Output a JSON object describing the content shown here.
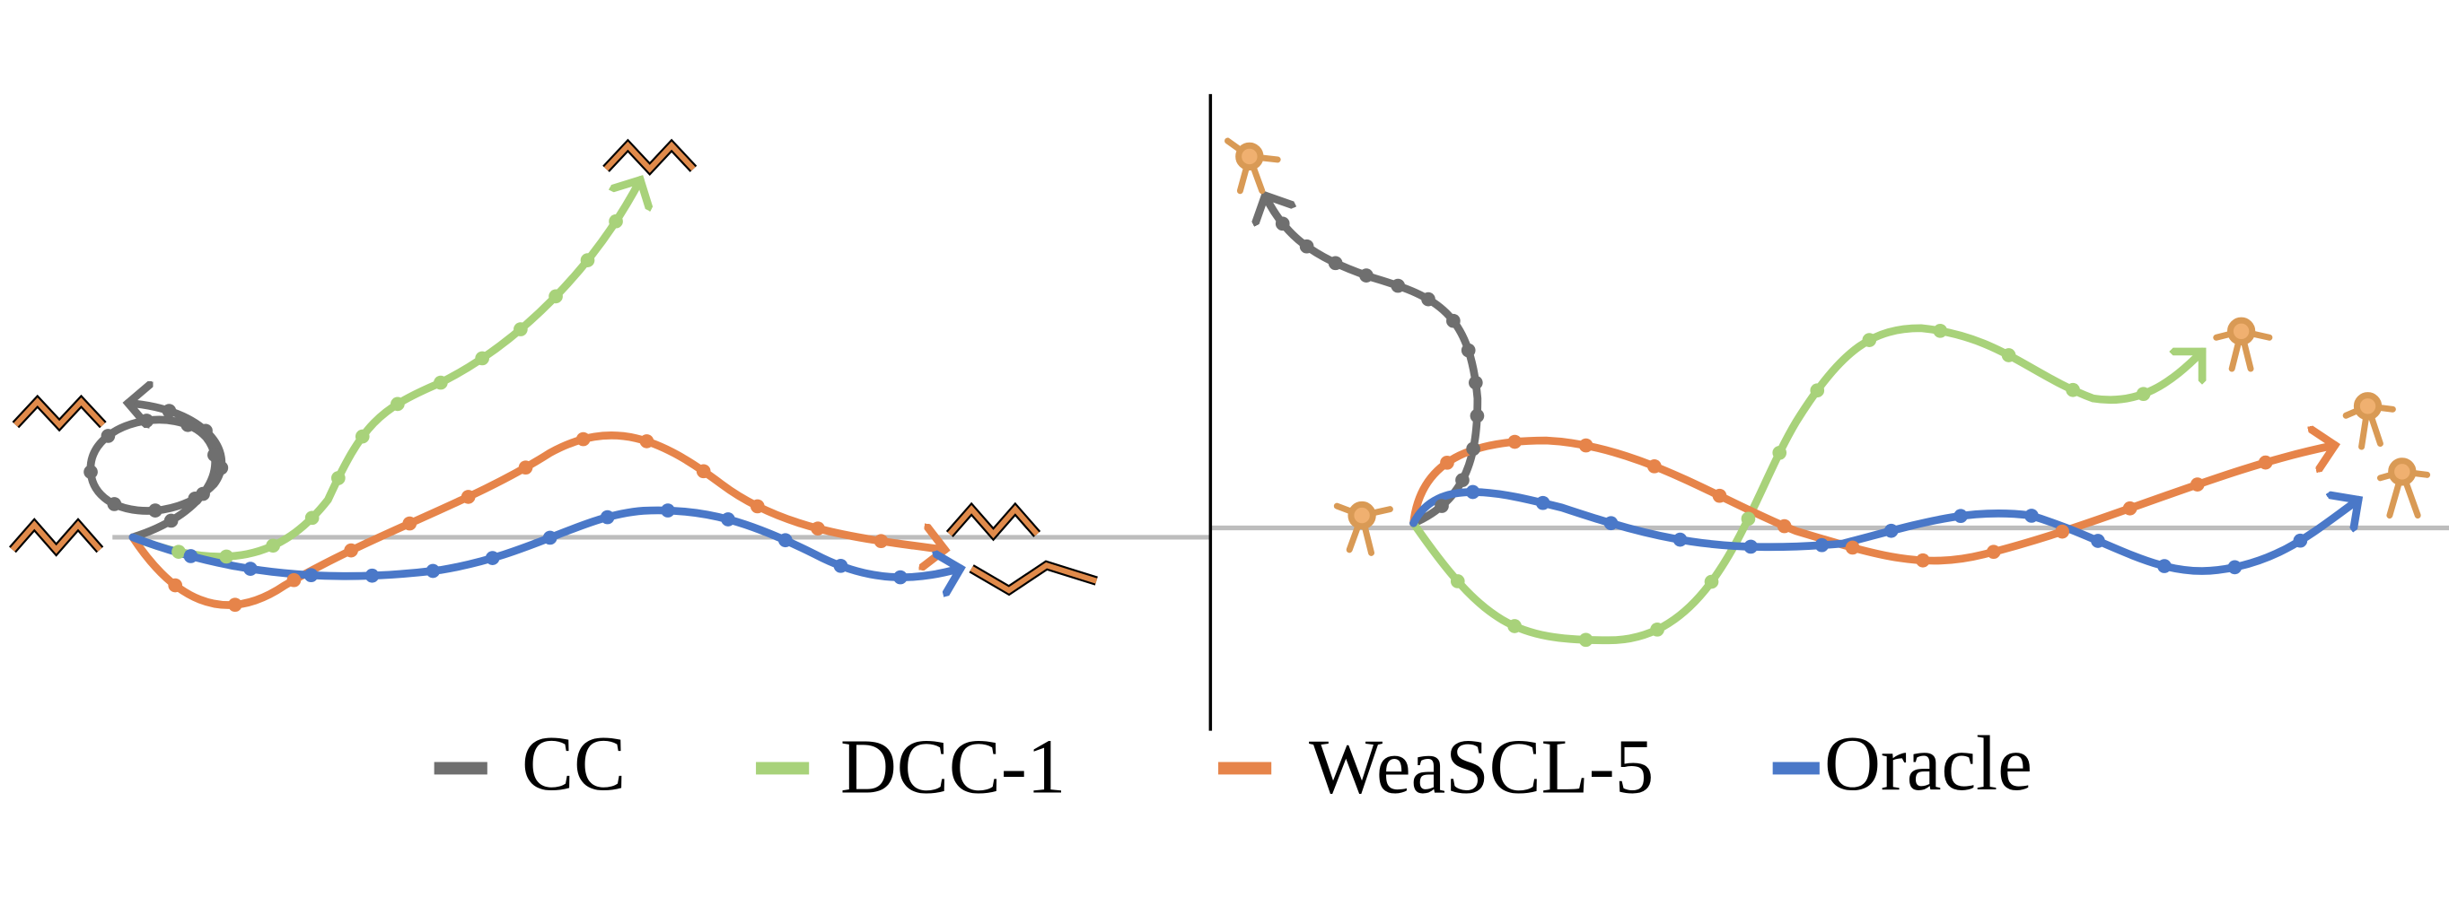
{
  "legend": [
    {
      "label": "CC"
    },
    {
      "label": "DCC-1"
    },
    {
      "label": "WeaSCL-5"
    },
    {
      "label": "Oracle"
    }
  ]
}
